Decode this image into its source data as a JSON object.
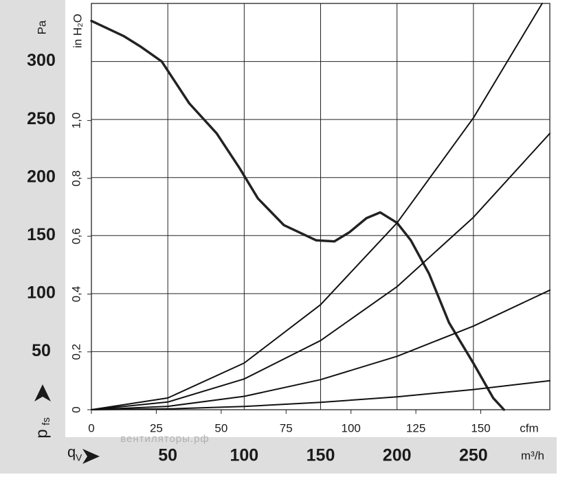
{
  "chart_data": {
    "type": "line",
    "y_unit": "Pa",
    "y2_unit": "in H₂O",
    "x_unit": "m³/h",
    "x2_unit": "cfm",
    "y_symbol": "p",
    "y_subscript": "fs",
    "x_symbol": "q",
    "x_subscript": "V",
    "watermark": "вентиляторы.рф",
    "xlim": [
      0,
      300
    ],
    "xticks": [
      50,
      100,
      150,
      200,
      250
    ],
    "x2lim": [
      0,
      176.6
    ],
    "x2ticks": [
      0,
      25,
      50,
      75,
      100,
      125,
      150
    ],
    "ylim": [
      0,
      350
    ],
    "yticks": [
      50,
      100,
      150,
      200,
      250,
      300
    ],
    "y2lim": [
      0,
      1.405
    ],
    "y2ticks": [
      0,
      {
        "value": 0.2,
        "label": "0,2"
      },
      {
        "value": 0.4,
        "label": "0,4"
      },
      {
        "value": 0.6,
        "label": "0,6"
      },
      {
        "value": 0.8,
        "label": "0,8"
      },
      {
        "value": 1.0,
        "label": "1,0"
      }
    ],
    "grid": true,
    "series": [
      {
        "color": "#222222",
        "width": 3.5,
        "x": [
          0,
          21,
          32,
          46,
          64,
          82,
          97,
          109,
          126,
          147,
          159,
          169,
          180,
          189,
          200,
          209,
          221,
          234,
          250,
          263,
          270
        ],
        "values": [
          335,
          322,
          313,
          300,
          264,
          238,
          208,
          182,
          159,
          146,
          145,
          153,
          165,
          170,
          161,
          146,
          117,
          75,
          40,
          10,
          0
        ]
      },
      {
        "color": "#111111",
        "width": 2,
        "x": [
          0,
          50,
          100,
          150,
          200,
          250,
          295
        ],
        "values": [
          0,
          10.1,
          40.2,
          90.5,
          160.9,
          251.4,
          350
        ]
      },
      {
        "color": "#111111",
        "width": 2,
        "x": [
          0,
          50,
          100,
          150,
          200,
          250,
          300
        ],
        "values": [
          0,
          6.6,
          26.5,
          59.6,
          106,
          165.7,
          238
        ]
      },
      {
        "color": "#111111",
        "width": 2,
        "x": [
          0,
          50,
          100,
          150,
          200,
          250,
          300
        ],
        "values": [
          0,
          2.9,
          11.5,
          25.9,
          46,
          72,
          103
        ]
      },
      {
        "color": "#111111",
        "width": 2,
        "x": [
          0,
          50,
          100,
          150,
          200,
          250,
          300
        ],
        "values": [
          0,
          0.7,
          2.8,
          6.3,
          11.1,
          17.4,
          25
        ]
      }
    ]
  }
}
